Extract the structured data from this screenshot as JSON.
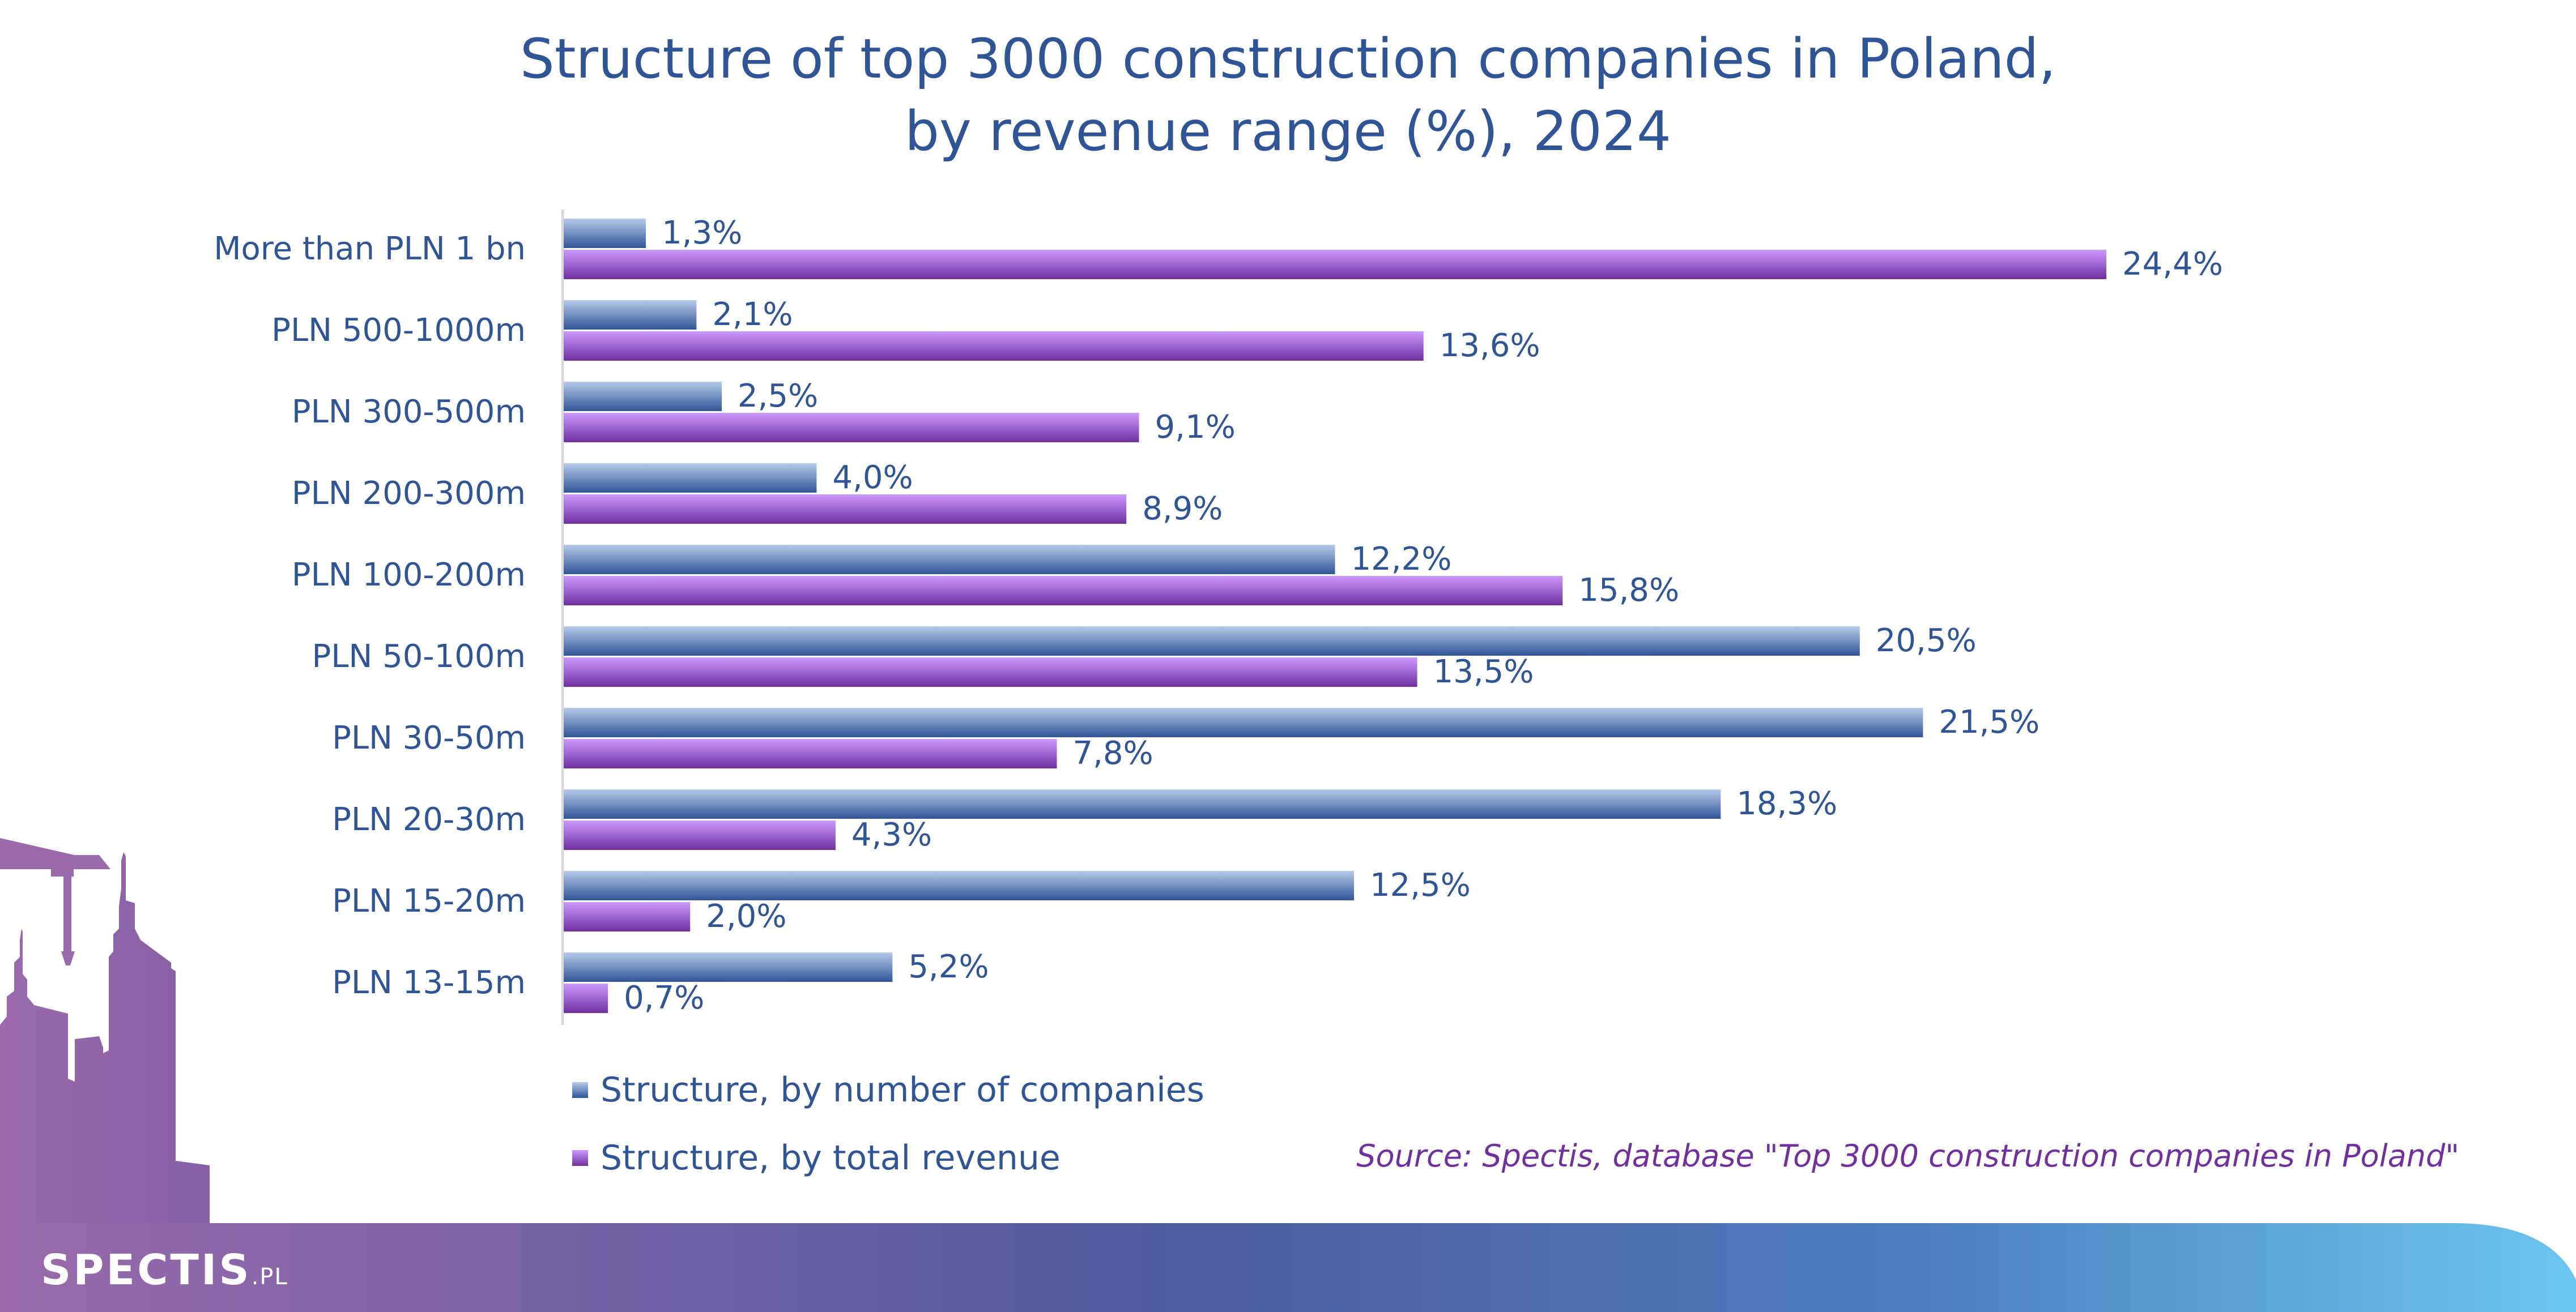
{
  "chart_data": {
    "type": "bar",
    "orientation": "horizontal",
    "title": "Structure of top 3000 construction companies in Poland, by revenue range (%), 2024",
    "title_lines": [
      "Structure of top 3000 construction companies in Poland,",
      "by revenue range (%), 2024"
    ],
    "categories": [
      "More than PLN 1 bn",
      "PLN 500-1000m",
      "PLN 300-500m",
      "PLN 200-300m",
      "PLN 100-200m",
      "PLN 50-100m",
      "PLN 30-50m",
      "PLN 20-30m",
      "PLN 15-20m",
      "PLN 13-15m"
    ],
    "series": [
      {
        "name": "Structure, by number of companies",
        "color": "#2f5597",
        "values": [
          1.3,
          2.1,
          2.5,
          4.0,
          12.2,
          20.5,
          21.5,
          18.3,
          12.5,
          5.2
        ],
        "labels": [
          "1,3%",
          "2,1%",
          "2,5%",
          "4,0%",
          "12,2%",
          "20,5%",
          "21,5%",
          "18,3%",
          "12,5%",
          "5,2%"
        ]
      },
      {
        "name": "Structure, by total revenue",
        "color": "#7030a0",
        "values": [
          24.4,
          13.6,
          9.1,
          8.9,
          15.8,
          13.5,
          7.8,
          4.3,
          2.0,
          0.7
        ],
        "labels": [
          "24,4%",
          "13,6%",
          "9,1%",
          "8,9%",
          "15,8%",
          "13,5%",
          "7,8%",
          "4,3%",
          "2,0%",
          "0,7%"
        ]
      }
    ],
    "xlim": [
      0,
      24.4
    ],
    "grid": false,
    "legend_placement": "bottom-left",
    "source": "Source: Spectis, database \"Top 3000 construction companies in Poland\""
  },
  "branding": {
    "logo": "SPECTIS",
    "logo_suffix": ".PL"
  }
}
